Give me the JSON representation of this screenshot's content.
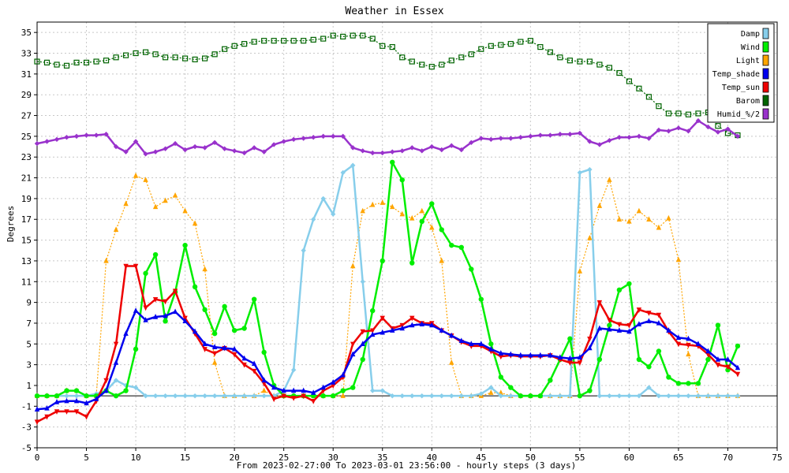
{
  "chart_data": {
    "type": "line",
    "title": "Weather in Essex",
    "xlabel": "From 2023-02-27:00 To 2023-03-01 23:56:00 - hourly steps (3 days)",
    "ylabel": "Degrees",
    "xlim": [
      0,
      75
    ],
    "ylim": [
      -5,
      36
    ],
    "xticks": [
      0,
      5,
      10,
      15,
      20,
      25,
      30,
      35,
      40,
      45,
      50,
      55,
      60,
      65,
      70,
      75
    ],
    "yticks": [
      -5,
      -3,
      -1,
      1,
      3,
      5,
      7,
      9,
      11,
      13,
      15,
      17,
      19,
      21,
      23,
      25,
      27,
      29,
      31,
      33,
      35
    ],
    "grid": true,
    "legend_position": "top-right",
    "series": [
      {
        "name": "Damp",
        "color": "#87ceeb",
        "marker": "diamond",
        "values": [
          0,
          0,
          0,
          0,
          0,
          0,
          0.2,
          0.5,
          1.5,
          1,
          0.8,
          0,
          0,
          0,
          0,
          0,
          0,
          0,
          0,
          0,
          0,
          0,
          0,
          0,
          0,
          0.5,
          2.5,
          14,
          17,
          19,
          17.5,
          21.5,
          22.2,
          11,
          0.5,
          0.5,
          0,
          0,
          0,
          0,
          0,
          0,
          0,
          0,
          0,
          0.2,
          0.8,
          0,
          0,
          0,
          0,
          0,
          0,
          0,
          0,
          21.5,
          21.8,
          0,
          0,
          0,
          0,
          0,
          0.8,
          0,
          0,
          0,
          0,
          0,
          0,
          0,
          0,
          0
        ]
      },
      {
        "name": "Wind",
        "color": "#00ee00",
        "marker": "circle",
        "values": [
          0,
          0,
          0,
          0.5,
          0.5,
          0,
          0,
          0.5,
          0,
          0.5,
          4.5,
          11.8,
          13.6,
          7.2,
          10,
          14.5,
          10.5,
          8.3,
          6,
          8.6,
          6.3,
          6.5,
          9.3,
          4.2,
          1,
          0,
          0,
          0,
          0,
          0,
          0,
          0.5,
          0.8,
          3.5,
          8.2,
          13,
          22.5,
          20.8,
          12.8,
          16.8,
          18.5,
          16,
          14.5,
          14.3,
          12.2,
          9.3,
          5,
          1.8,
          0.8,
          0,
          0,
          0,
          1.5,
          3.5,
          5.5,
          0,
          0.5,
          3.5,
          6.8,
          10.2,
          10.8,
          3.5,
          2.8,
          4.3,
          1.8,
          1.2,
          1.2,
          1.2,
          3.5,
          6.8,
          2.5,
          4.8
        ]
      },
      {
        "name": "Light",
        "color": "#ffa500",
        "marker": "triangle-up",
        "values": [
          0,
          0,
          0,
          0.5,
          0.5,
          0,
          0,
          13,
          16,
          18.5,
          21.2,
          20.8,
          18.2,
          18.8,
          19.3,
          17.8,
          16.6,
          12.2,
          3.2,
          0,
          0,
          0,
          0,
          0.5,
          0,
          0,
          0,
          0,
          0,
          0,
          0,
          0,
          12.5,
          17.8,
          18.4,
          18.6,
          18.2,
          17.5,
          17.1,
          17.8,
          16.2,
          13,
          3.2,
          0,
          0,
          0,
          0.3,
          0.3,
          0,
          0,
          0,
          0,
          0,
          0,
          0,
          12,
          15.2,
          18.3,
          20.8,
          17,
          16.8,
          17.8,
          17,
          16.2,
          17.1,
          13.1,
          4,
          0,
          0,
          0,
          0,
          0
        ]
      },
      {
        "name": "Temp_shade",
        "color": "#0000ee",
        "marker": "triangle-up",
        "values": [
          -1.3,
          -1.2,
          -0.6,
          -0.5,
          -0.5,
          -0.7,
          -0.3,
          0.5,
          3.2,
          6,
          8.2,
          7.3,
          7.6,
          7.7,
          8.1,
          7.2,
          6.2,
          5,
          4.7,
          4.6,
          4.5,
          3.6,
          3.1,
          1.5,
          0.8,
          0.5,
          0.5,
          0.5,
          0.3,
          0.8,
          1.3,
          2,
          4,
          5,
          5.9,
          6.1,
          6.3,
          6.5,
          6.8,
          6.9,
          6.8,
          6.3,
          5.8,
          5.3,
          5,
          5,
          4.5,
          4.1,
          4,
          3.9,
          3.9,
          3.9,
          3.9,
          3.7,
          3.6,
          3.7,
          4.6,
          6.5,
          6.4,
          6.3,
          6.2,
          6.9,
          7.2,
          7,
          6.3,
          5.6,
          5.5,
          5,
          4.3,
          3.5,
          3.5,
          2.7
        ]
      },
      {
        "name": "Temp_sun",
        "color": "#ee0000",
        "marker": "triangle-down",
        "values": [
          -2.5,
          -2,
          -1.5,
          -1.5,
          -1.5,
          -2,
          -0.5,
          1.5,
          5,
          12.5,
          12.5,
          8.5,
          9.3,
          9.1,
          10.1,
          7.5,
          6,
          4.5,
          4.1,
          4.6,
          4,
          3,
          2.4,
          1.2,
          -0.3,
          0,
          -0.2,
          0,
          -0.5,
          0.5,
          1,
          1.8,
          5,
          6.2,
          6.3,
          7.5,
          6.5,
          6.8,
          7.5,
          7,
          7,
          6.3,
          5.8,
          5.2,
          4.8,
          4.8,
          4.3,
          3.8,
          3.9,
          3.8,
          3.8,
          3.8,
          3.9,
          3.5,
          3.2,
          3.2,
          5.5,
          9,
          7.3,
          6.9,
          6.8,
          8.3,
          8,
          7.8,
          6.2,
          5,
          4.9,
          4.8,
          4,
          3,
          2.8,
          2.1
        ]
      },
      {
        "name": "Barom",
        "color": "#006400",
        "marker": "square",
        "values": [
          32.2,
          32.1,
          31.9,
          31.8,
          32.1,
          32.1,
          32.2,
          32.3,
          32.6,
          32.8,
          33,
          33.1,
          32.9,
          32.6,
          32.6,
          32.5,
          32.4,
          32.5,
          32.9,
          33.4,
          33.7,
          33.9,
          34.1,
          34.2,
          34.2,
          34.2,
          34.2,
          34.2,
          34.3,
          34.4,
          34.7,
          34.6,
          34.7,
          34.7,
          34.4,
          33.7,
          33.6,
          32.6,
          32.2,
          31.9,
          31.7,
          31.9,
          32.3,
          32.6,
          32.9,
          33.4,
          33.7,
          33.8,
          33.9,
          34.1,
          34.2,
          33.6,
          33.1,
          32.6,
          32.3,
          32.2,
          32.2,
          31.9,
          31.6,
          31.1,
          30.3,
          29.6,
          28.8,
          27.9,
          27.2,
          27.2,
          27.1,
          27.2,
          27.3,
          26,
          25.3,
          25.1
        ]
      },
      {
        "name": "Humid_%/2",
        "color": "#9932cc",
        "marker": "diamond",
        "values": [
          24.3,
          24.5,
          24.7,
          24.9,
          25,
          25.1,
          25.1,
          25.2,
          24,
          23.5,
          24.5,
          23.3,
          23.5,
          23.8,
          24.3,
          23.7,
          24,
          23.9,
          24.4,
          23.8,
          23.6,
          23.4,
          23.9,
          23.5,
          24.2,
          24.5,
          24.7,
          24.8,
          24.9,
          25,
          25,
          25,
          23.9,
          23.6,
          23.4,
          23.4,
          23.5,
          23.6,
          23.9,
          23.6,
          24,
          23.7,
          24.1,
          23.7,
          24.4,
          24.8,
          24.7,
          24.8,
          24.8,
          24.9,
          25,
          25.1,
          25.1,
          25.2,
          25.2,
          25.3,
          24.5,
          24.2,
          24.6,
          24.9,
          24.9,
          25,
          24.8,
          25.6,
          25.5,
          25.8,
          25.5,
          26.5,
          25.9,
          25.4,
          25.7,
          25
        ]
      }
    ]
  }
}
